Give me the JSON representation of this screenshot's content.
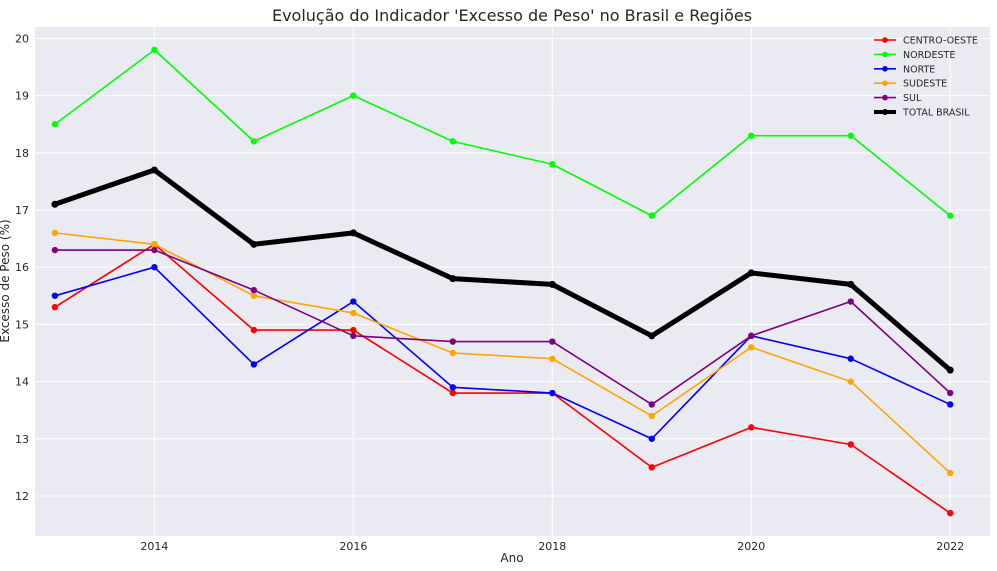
{
  "chart_data": {
    "type": "line",
    "title": "Evolução do Indicador 'Excesso de Peso' no Brasil e Regiões",
    "xlabel": "Ano",
    "ylabel": "Excesso de Peso (%)",
    "xlim": [
      2012.8,
      2022.4
    ],
    "ylim": [
      11.3,
      20.2
    ],
    "xticks": [
      2014,
      2016,
      2018,
      2020,
      2022
    ],
    "yticks": [
      12,
      13,
      14,
      15,
      16,
      17,
      18,
      19,
      20
    ],
    "grid": true,
    "legend_position": "top-right",
    "x": [
      2013,
      2014,
      2015,
      2016,
      2017,
      2018,
      2019,
      2020,
      2021,
      2022
    ],
    "series": [
      {
        "name": "CENTRO-OESTE",
        "color": "#ff0000",
        "values": [
          15.3,
          16.4,
          14.9,
          14.9,
          13.8,
          13.8,
          12.5,
          13.2,
          12.9,
          11.7
        ]
      },
      {
        "name": "NORDESTE",
        "color": "#00ff00",
        "values": [
          18.5,
          19.8,
          18.2,
          19.0,
          18.2,
          17.8,
          16.9,
          18.3,
          18.3,
          16.9
        ]
      },
      {
        "name": "NORTE",
        "color": "#0000ff",
        "values": [
          15.5,
          16.0,
          14.3,
          15.4,
          13.9,
          13.8,
          13.0,
          14.8,
          14.4,
          13.6
        ]
      },
      {
        "name": "SUDESTE",
        "color": "#ffa500",
        "values": [
          16.6,
          16.4,
          15.5,
          15.2,
          14.5,
          14.4,
          13.4,
          14.6,
          14.0,
          12.4
        ]
      },
      {
        "name": "SUL",
        "color": "#800080",
        "values": [
          16.3,
          16.3,
          15.6,
          14.8,
          14.7,
          14.7,
          13.6,
          14.8,
          15.4,
          13.8
        ]
      },
      {
        "name": "TOTAL BRASIL",
        "color": "#000000",
        "thick": true,
        "values": [
          17.1,
          17.7,
          16.4,
          16.6,
          15.8,
          15.7,
          14.8,
          15.9,
          15.7,
          14.2
        ]
      }
    ]
  }
}
